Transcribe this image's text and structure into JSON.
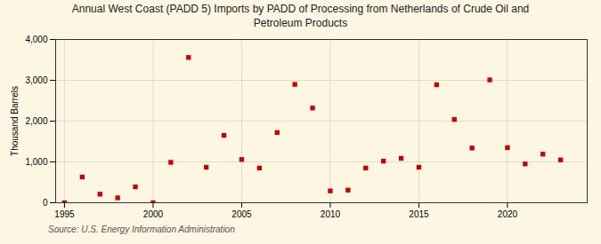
{
  "chart_data": {
    "type": "scatter",
    "title": "Annual West Coast (PADD 5) Imports by PADD of Processing from Netherlands of Crude Oil and\nPetroleum Products",
    "ylabel": "Thousand Barrels",
    "source": "Source: U.S. Energy Information Administration",
    "x": [
      1995,
      1996,
      1997,
      1998,
      1999,
      2000,
      2001,
      2002,
      2003,
      2004,
      2005,
      2006,
      2007,
      2008,
      2009,
      2010,
      2011,
      2012,
      2013,
      2014,
      2015,
      2016,
      2017,
      2018,
      2019,
      2020,
      2021,
      2022,
      2023
    ],
    "values": [
      0,
      630,
      210,
      120,
      390,
      0,
      990,
      3560,
      870,
      1650,
      1060,
      850,
      1720,
      2900,
      2320,
      290,
      310,
      850,
      1020,
      1090,
      870,
      2890,
      2040,
      1340,
      3010,
      1350,
      950,
      1190,
      1050
    ],
    "color": "#cc0000",
    "marker": "square",
    "xlim": [
      1994.5,
      2024.5
    ],
    "ylim": [
      0,
      4000
    ],
    "xticks": [
      1995,
      2000,
      2005,
      2010,
      2015,
      2020
    ],
    "yticks": [
      0,
      {
        "value": 1000,
        "label": "1,000"
      },
      {
        "value": 2000,
        "label": "2,000"
      },
      {
        "value": 3000,
        "label": "3,000"
      },
      {
        "value": 4000,
        "label": "4,000"
      }
    ],
    "grid": true
  }
}
